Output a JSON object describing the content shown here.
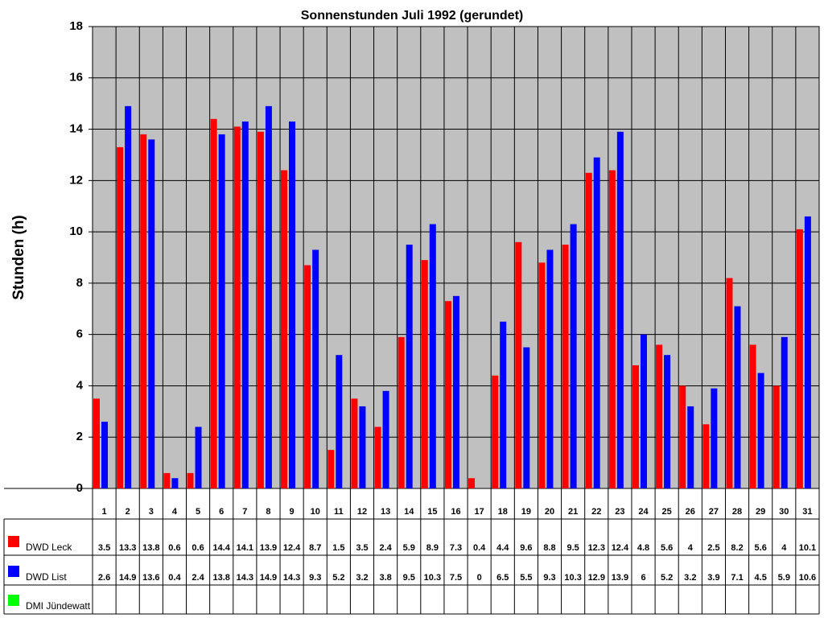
{
  "chart_data": {
    "type": "bar",
    "title": "Sonnenstunden Juli 1992 (gerundet)",
    "y_label": "Stunden (h)",
    "categories": [
      "1",
      "2",
      "3",
      "4",
      "5",
      "6",
      "7",
      "8",
      "9",
      "10",
      "11",
      "12",
      "13",
      "14",
      "15",
      "16",
      "17",
      "18",
      "19",
      "20",
      "21",
      "22",
      "23",
      "24",
      "25",
      "26",
      "27",
      "28",
      "29",
      "30",
      "31"
    ],
    "series": [
      {
        "name": "DWD Leck",
        "color": "#ff0000",
        "values": [
          3.5,
          13.3,
          13.8,
          0.6,
          0.6,
          14.4,
          14.1,
          13.9,
          12.4,
          8.7,
          1.5,
          3.5,
          2.4,
          5.9,
          8.9,
          7.3,
          0.4,
          4.4,
          9.6,
          8.8,
          9.5,
          12.3,
          12.4,
          4.8,
          5.6,
          4,
          2.5,
          8.2,
          5.6,
          4,
          10.1
        ]
      },
      {
        "name": "DWD List",
        "color": "#0000ff",
        "values": [
          2.6,
          14.9,
          13.6,
          0.4,
          2.4,
          13.8,
          14.3,
          14.9,
          14.3,
          9.3,
          5.2,
          3.2,
          3.8,
          9.5,
          10.3,
          7.5,
          0,
          6.5,
          5.5,
          9.3,
          10.3,
          12.9,
          13.9,
          6,
          5.2,
          3.2,
          3.9,
          7.1,
          4.5,
          5.9,
          10.6
        ]
      },
      {
        "name": "DMI Jündewatt",
        "color": "#00ff00",
        "values": [
          null,
          null,
          null,
          null,
          null,
          null,
          null,
          null,
          null,
          null,
          null,
          null,
          null,
          null,
          null,
          null,
          null,
          null,
          null,
          null,
          null,
          null,
          null,
          null,
          null,
          null,
          null,
          null,
          null,
          null,
          null
        ]
      }
    ],
    "ylim": [
      0,
      18
    ],
    "yticks": [
      0,
      2,
      4,
      6,
      8,
      10,
      12,
      14,
      16,
      18
    ],
    "grid": true
  }
}
